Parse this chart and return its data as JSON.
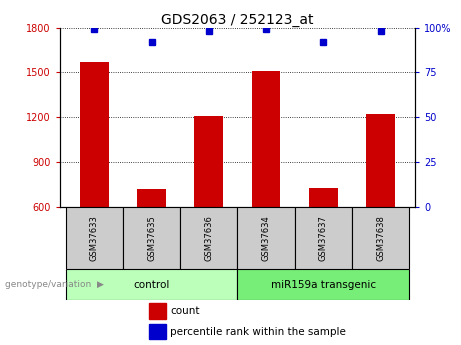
{
  "title": "GDS2063 / 252123_at",
  "samples": [
    "GSM37633",
    "GSM37635",
    "GSM37636",
    "GSM37634",
    "GSM37637",
    "GSM37638"
  ],
  "counts": [
    1570,
    720,
    1210,
    1510,
    730,
    1220
  ],
  "percentile_ranks": [
    99,
    92,
    98,
    99,
    92,
    98
  ],
  "groups": [
    "control",
    "control",
    "control",
    "miR159a transgenic",
    "miR159a transgenic",
    "miR159a transgenic"
  ],
  "ylim_left": [
    600,
    1800
  ],
  "yticks_left": [
    600,
    900,
    1200,
    1500,
    1800
  ],
  "ylim_right": [
    0,
    100
  ],
  "yticks_right": [
    0,
    25,
    50,
    75,
    100
  ],
  "ytick_right_labels": [
    "0",
    "25",
    "50",
    "75",
    "100%"
  ],
  "bar_color": "#cc0000",
  "dot_color": "#0000cc",
  "group_colors": {
    "control": "#bbffbb",
    "miR159a transgenic": "#77ee77"
  },
  "legend_count_label": "count",
  "legend_pct_label": "percentile rank within the sample",
  "genotype_label": "genotype/variation",
  "sample_box_color": "#cccccc"
}
